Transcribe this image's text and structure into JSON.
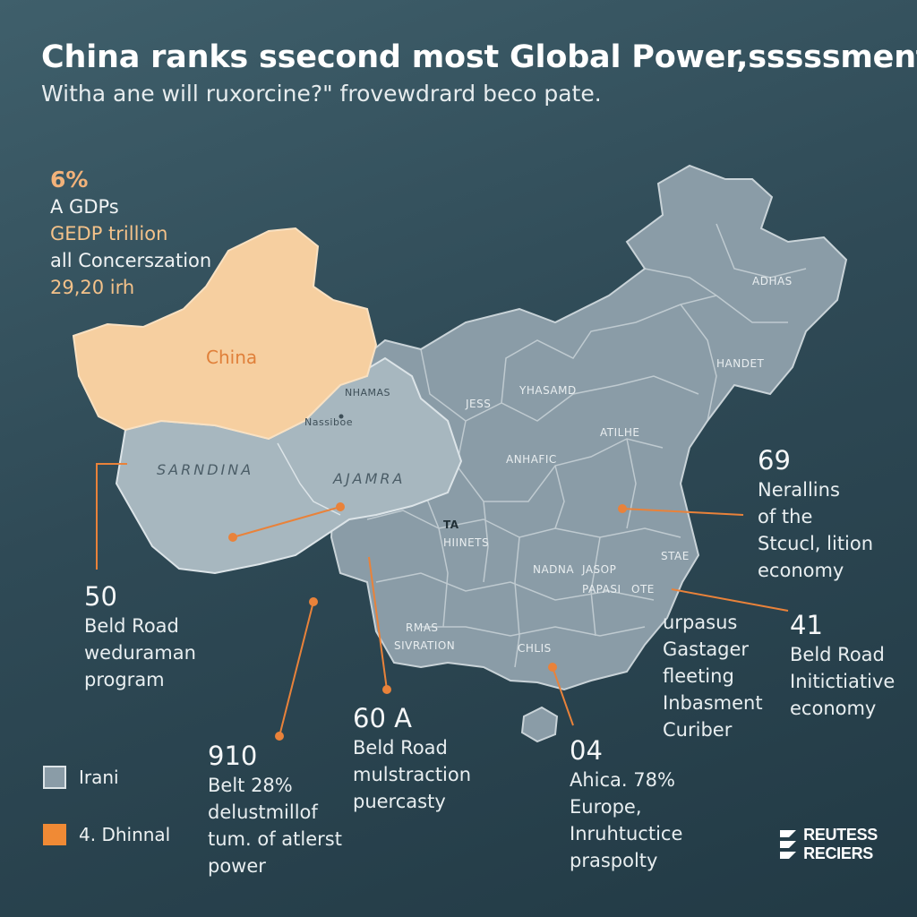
{
  "header": {
    "title": "China ranks ssecond most Global Power,sssssments.",
    "subtitle": "Witha ane will ruxorcine?\" frovewdrard beco pate."
  },
  "top_left": {
    "pct": "6%",
    "line1": "A GDPs",
    "line2": "GEDP trillion",
    "line3": "all Concerszation",
    "line4": "29,20 irh"
  },
  "map": {
    "fill_highlight": "#f6cfa0",
    "fill_light": "#a7b7bf",
    "fill_main": "#8a9ca7",
    "leader_color": "#e9823a",
    "labels": {
      "china": "China",
      "sarndina": "SARNDINA",
      "ajamra": "AJAMRA",
      "nhamas": "NHAMAS",
      "nassiboe": "Nassiboe",
      "jess": "JESS",
      "adhas": "ADHAS",
      "handet": "HANDET",
      "atilhe": "ATILHE",
      "anhafic": "ANHAFIC",
      "yhasamd": "YHASAMD",
      "hiinets": "HIINETS",
      "nadna": "NADNA",
      "jasop": "JASOP",
      "rapasi": "PAPASI",
      "ote": "OTE",
      "rmas": "RMAS",
      "sivration": "SIVRATION",
      "chlis": "CHLIS",
      "sta": "STAE",
      "ta": "TA"
    }
  },
  "callouts": {
    "c50": {
      "num": "50",
      "l1": "Beld Road",
      "l2": "weduraman",
      "l3": "program"
    },
    "c69": {
      "num": "69",
      "l1": "Nerallins",
      "l2": "of the",
      "l3": "Stcucl, lition",
      "l4": "economy"
    },
    "c41": {
      "num": "41",
      "l1": "Beld Road",
      "l2": "Initictiative",
      "l3": "economy"
    },
    "curpas": {
      "l1": "urpasus",
      "l2": "Gastager",
      "l3": "fleeting",
      "l4": "Inbasment",
      "l5": "Curiber"
    },
    "c60": {
      "num": "60 A",
      "l1": "Beld Road",
      "l2": "mulstraction",
      "l3": "puercasty"
    },
    "c04": {
      "num": "04",
      "l1": "Ahica. 78%",
      "l2": "Europe,",
      "l3": "Inruhtuctice",
      "l4": "praspolty"
    },
    "c910": {
      "num": "910",
      "l1": "Belt 28%",
      "l2": "delustmillof",
      "l3": "tum. of atlerst",
      "l4": "power"
    }
  },
  "legend": [
    {
      "label": "Irani",
      "color": "#8a9ca7"
    },
    {
      "label": "4. Dhinnal",
      "color": "#f08a35"
    }
  ],
  "brand": {
    "line1": "REUTESS",
    "line2": "RECIERS"
  }
}
